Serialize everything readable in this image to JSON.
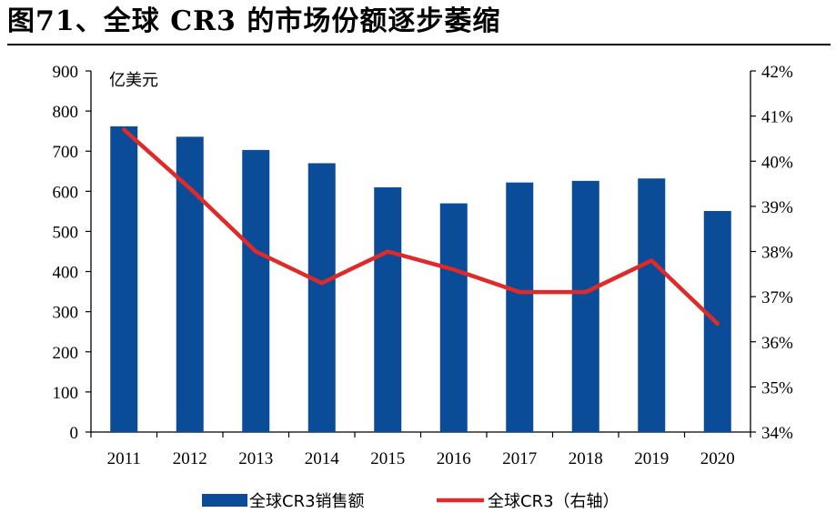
{
  "title": "图71、全球 CR3 的市场份额逐步萎缩",
  "chart_data": {
    "type": "bar+line",
    "categories": [
      "2011",
      "2012",
      "2013",
      "2014",
      "2015",
      "2016",
      "2017",
      "2018",
      "2019",
      "2020"
    ],
    "series": [
      {
        "name": "全球CR3销售额",
        "type": "bar",
        "axis": "left",
        "color": "#0A4C97",
        "values": [
          762,
          736,
          703,
          670,
          610,
          570,
          622,
          626,
          632,
          551
        ]
      },
      {
        "name": "全球CR3（右轴）",
        "type": "line",
        "axis": "right",
        "color": "#E02A2A",
        "values": [
          40.7,
          39.4,
          38.0,
          37.3,
          38.0,
          37.6,
          37.1,
          37.1,
          37.8,
          36.4
        ]
      }
    ],
    "unit_label": "亿美元",
    "left_axis": {
      "ylim": [
        0,
        900
      ],
      "ticks": [
        "0",
        "100",
        "200",
        "300",
        "400",
        "500",
        "600",
        "700",
        "800",
        "900"
      ]
    },
    "right_axis": {
      "ylim": [
        34,
        42
      ],
      "ticks": [
        "34%",
        "35%",
        "36%",
        "37%",
        "38%",
        "39%",
        "40%",
        "41%",
        "42%"
      ]
    },
    "grid": false,
    "legend_position": "bottom",
    "legend": [
      {
        "label": "全球CR3销售额"
      },
      {
        "label": "全球CR3（右轴）"
      }
    ]
  }
}
